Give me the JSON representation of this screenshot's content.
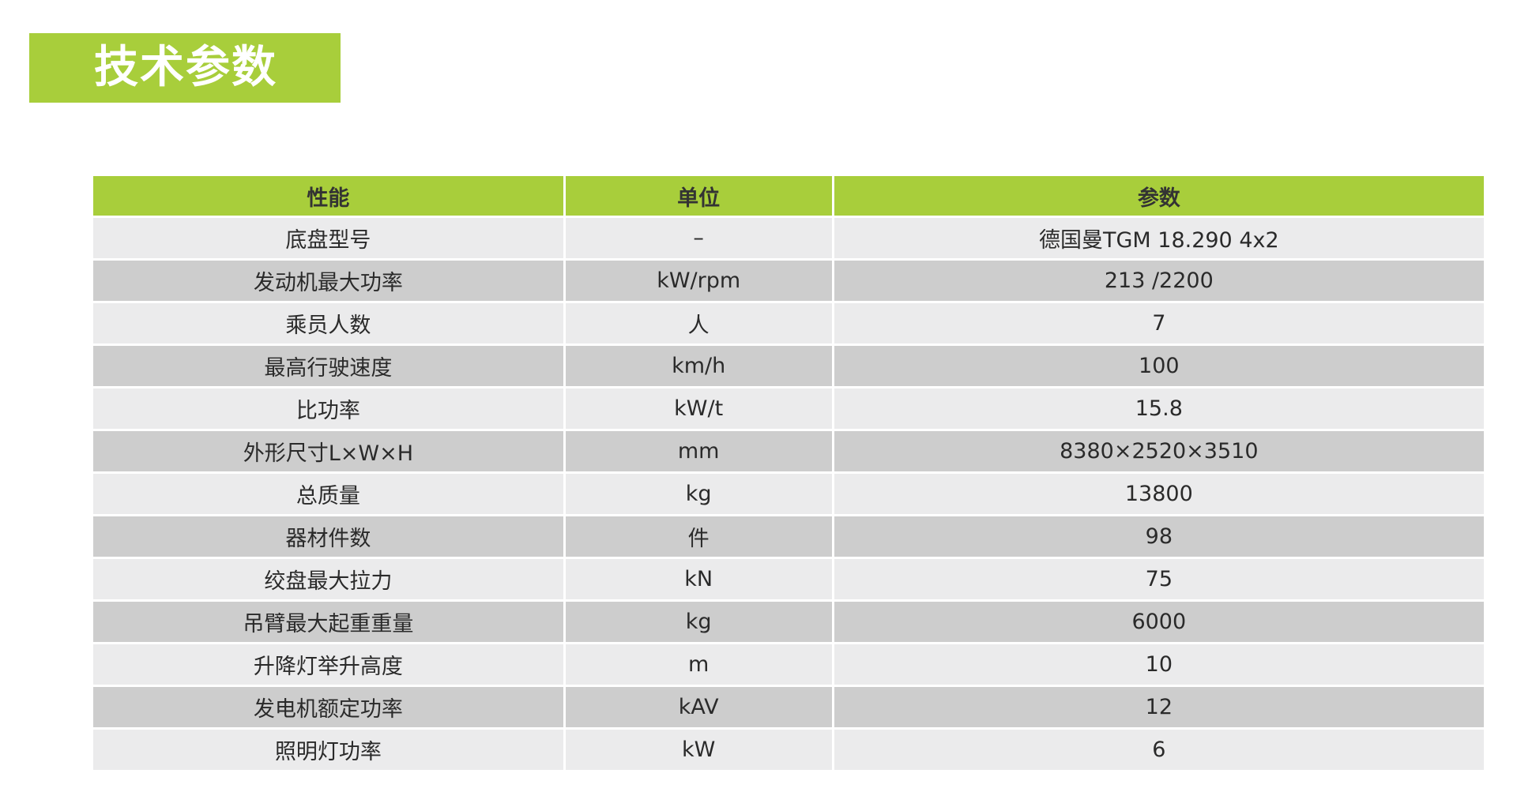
{
  "title": "技术参数",
  "colors": {
    "accent": "#a8ce3b",
    "row_light": "#ebebec",
    "row_dark": "#cdcdcd"
  },
  "table": {
    "headers": [
      "性能",
      "单位",
      "参数"
    ],
    "rows": [
      [
        "底盘型号",
        "–",
        "德国曼TGM 18.290 4x2"
      ],
      [
        "发动机最大功率",
        "kW/rpm",
        "213 /2200"
      ],
      [
        "乘员人数",
        "人",
        "7"
      ],
      [
        "最高行驶速度",
        "km/h",
        "100"
      ],
      [
        "比功率",
        "kW/t",
        "15.8"
      ],
      [
        "外形尺寸L×W×H",
        "mm",
        "8380×2520×3510"
      ],
      [
        "总质量",
        "kg",
        "13800"
      ],
      [
        "器材件数",
        "件",
        "98"
      ],
      [
        "绞盘最大拉力",
        "kN",
        "75"
      ],
      [
        "吊臂最大起重重量",
        "kg",
        "6000"
      ],
      [
        "升降灯举升高度",
        "m",
        "10"
      ],
      [
        "发电机额定功率",
        "kAV",
        "12"
      ],
      [
        "照明灯功率",
        "kW",
        "6"
      ]
    ]
  }
}
